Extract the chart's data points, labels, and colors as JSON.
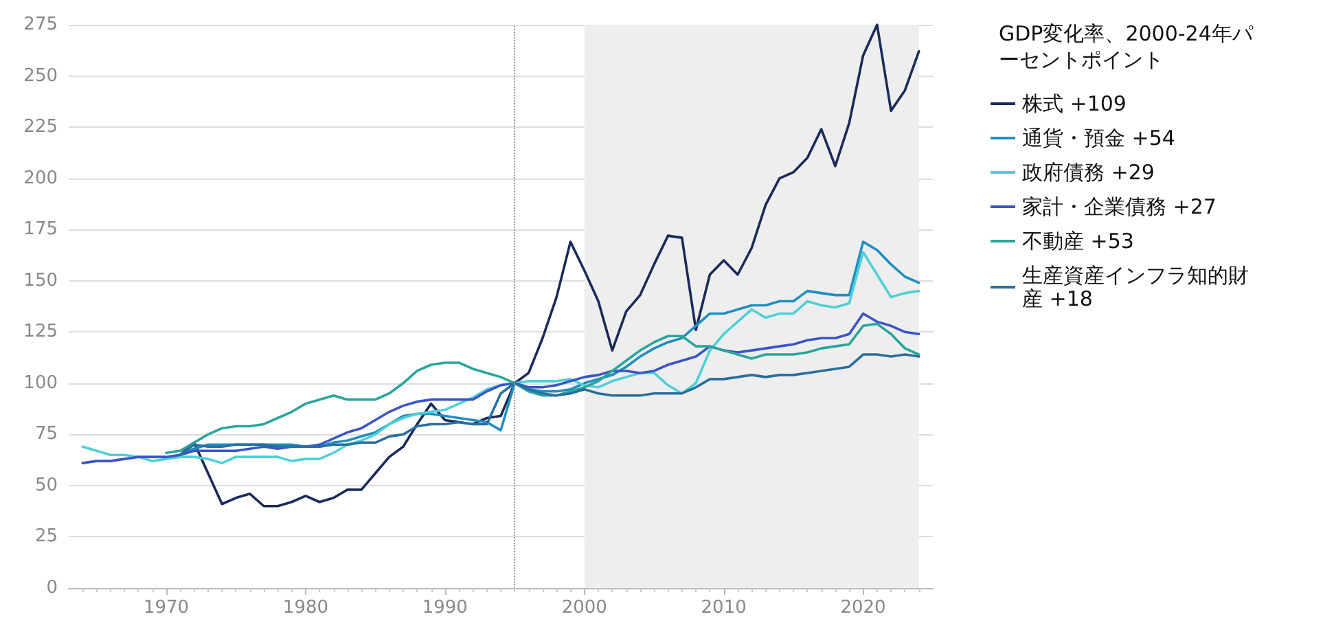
{
  "chart_data": {
    "type": "line",
    "legend_title": "GDP変化率、2000-24年パーセントポイント",
    "x": [
      1964,
      1965,
      1966,
      1967,
      1968,
      1969,
      1970,
      1971,
      1972,
      1973,
      1974,
      1975,
      1976,
      1977,
      1978,
      1979,
      1980,
      1981,
      1982,
      1983,
      1984,
      1985,
      1986,
      1987,
      1988,
      1989,
      1990,
      1991,
      1992,
      1993,
      1994,
      1995,
      1996,
      1997,
      1998,
      1999,
      2000,
      2001,
      2002,
      2003,
      2004,
      2005,
      2006,
      2007,
      2008,
      2009,
      2010,
      2011,
      2012,
      2013,
      2014,
      2015,
      2016,
      2017,
      2018,
      2019,
      2020,
      2021,
      2022,
      2023,
      2024
    ],
    "series": [
      {
        "name": "株式 +109",
        "color": "#1b2a5a",
        "values": [
          null,
          null,
          null,
          null,
          null,
          null,
          null,
          65,
          71,
          56,
          41,
          44,
          46,
          40,
          40,
          42,
          45,
          42,
          44,
          48,
          48,
          56,
          64,
          69,
          80,
          90,
          82,
          81,
          80,
          83,
          84,
          100,
          105,
          122,
          142,
          169,
          155,
          140,
          116,
          135,
          143,
          158,
          172,
          171,
          126,
          153,
          160,
          153,
          166,
          187,
          200,
          203,
          210,
          224,
          206,
          227,
          260,
          275,
          233,
          243,
          262
        ]
      },
      {
        "name": "通貨・預金 +54",
        "color": "#1f8fc0",
        "values": [
          null,
          null,
          null,
          null,
          null,
          null,
          null,
          65,
          68,
          70,
          70,
          70,
          70,
          70,
          70,
          70,
          69,
          69,
          71,
          72,
          74,
          76,
          80,
          84,
          85,
          85,
          84,
          83,
          82,
          81,
          77,
          100,
          97,
          96,
          96,
          97,
          100,
          102,
          104,
          108,
          113,
          117,
          120,
          122,
          128,
          134,
          134,
          136,
          138,
          138,
          140,
          140,
          145,
          144,
          143,
          143,
          169,
          165,
          158,
          152,
          149
        ]
      },
      {
        "name": "政府債務 +29",
        "color": "#4fd0d8",
        "values": [
          69,
          67,
          65,
          65,
          64,
          62,
          63,
          64,
          64,
          63,
          61,
          64,
          64,
          64,
          64,
          62,
          63,
          63,
          66,
          70,
          72,
          75,
          80,
          83,
          85,
          86,
          87,
          90,
          93,
          97,
          99,
          100,
          101,
          101,
          101,
          102,
          99,
          98,
          101,
          103,
          105,
          105,
          99,
          95,
          100,
          116,
          124,
          130,
          136,
          132,
          134,
          134,
          140,
          138,
          137,
          139,
          164,
          153,
          142,
          144,
          145
        ]
      },
      {
        "name": "家計・企業債務 +27",
        "color": "#3a55c8",
        "values": [
          61,
          62,
          62,
          63,
          64,
          64,
          64,
          65,
          67,
          67,
          67,
          67,
          68,
          69,
          68,
          69,
          69,
          70,
          73,
          76,
          78,
          82,
          86,
          89,
          91,
          92,
          92,
          92,
          92,
          96,
          99,
          100,
          98,
          98,
          99,
          101,
          103,
          104,
          106,
          106,
          105,
          106,
          109,
          111,
          113,
          118,
          116,
          115,
          116,
          117,
          118,
          119,
          121,
          122,
          122,
          124,
          134,
          130,
          128,
          125,
          124
        ]
      },
      {
        "name": "不動産 +53",
        "color": "#2aa59a",
        "values": [
          null,
          null,
          null,
          null,
          null,
          null,
          66,
          67,
          71,
          75,
          78,
          79,
          79,
          80,
          83,
          86,
          90,
          92,
          94,
          92,
          92,
          92,
          95,
          100,
          106,
          109,
          110,
          110,
          107,
          105,
          103,
          100,
          96,
          94,
          94,
          96,
          98,
          101,
          106,
          111,
          116,
          120,
          123,
          123,
          118,
          118,
          116,
          114,
          112,
          114,
          114,
          114,
          115,
          117,
          118,
          119,
          128,
          129,
          124,
          117,
          114
        ]
      },
      {
        "name": "生産資産インフラ知的財産 +18",
        "color": "#2a6f9e",
        "values": [
          null,
          null,
          null,
          null,
          null,
          null,
          null,
          65,
          70,
          69,
          69,
          70,
          70,
          70,
          69,
          69,
          69,
          69,
          70,
          70,
          71,
          71,
          74,
          75,
          79,
          80,
          80,
          81,
          80,
          80,
          95,
          100,
          97,
          95,
          94,
          95,
          97,
          95,
          94,
          94,
          94,
          95,
          95,
          95,
          98,
          102,
          102,
          103,
          104,
          103,
          104,
          104,
          105,
          106,
          107,
          108,
          114,
          114,
          113,
          114,
          113
        ]
      }
    ],
    "xlim": [
      1963,
      2025
    ],
    "xticks": [
      1970,
      1980,
      1990,
      2000,
      2010,
      2020
    ],
    "ylim": [
      0,
      275
    ],
    "yticks": [
      0,
      25,
      50,
      75,
      100,
      125,
      150,
      175,
      200,
      225,
      250,
      275
    ],
    "ref_lines": [
      {
        "axis": "x",
        "value": 1995,
        "color": "#999999",
        "line_style": "dotted"
      }
    ],
    "bands": [
      {
        "axis": "x",
        "from": 2000,
        "to": 2024,
        "color": "#eeeeee"
      }
    ],
    "grid": "y",
    "legend": "right",
    "marker": "none",
    "line_style": "solid"
  }
}
